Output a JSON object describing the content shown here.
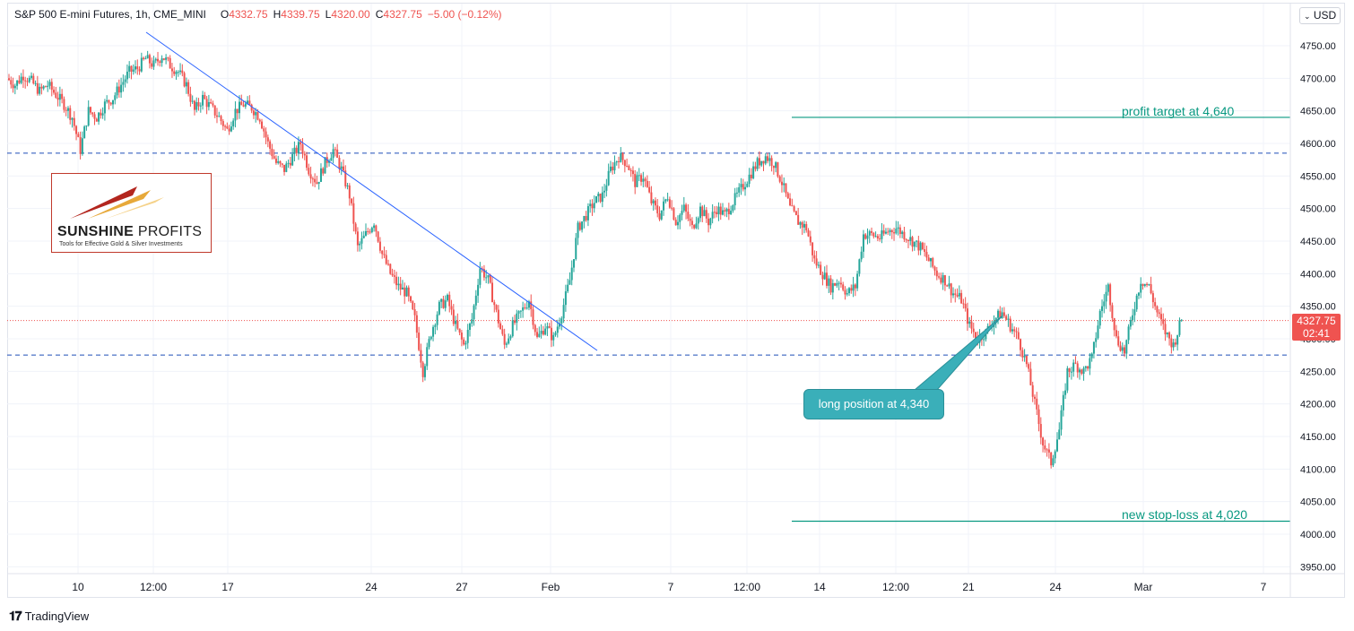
{
  "legend": {
    "symbol": "S&P 500 E-mini Futures, 1h, CME_MINI",
    "open_label": "O",
    "open": "4332.75",
    "high_label": "H",
    "high": "4339.75",
    "low_label": "L",
    "low": "4320.00",
    "close_label": "C",
    "close": "4327.75",
    "change": "−5.00 (−0.12%)"
  },
  "currency": "USD",
  "currency_menu_icon": "chevron-down-icon",
  "last_price": {
    "value": "4327.75",
    "countdown": "02:41"
  },
  "logo": {
    "brand_bold": "SUNSHINE",
    "brand_rest": "PROFITS",
    "tagline": "Tools for Effective Gold & Silver Investments"
  },
  "annotations": {
    "profit_target": "profit target at 4,640",
    "stop_loss": "new stop-loss at 4,020",
    "long_position": "long position at 4,340"
  },
  "footer": {
    "icon": "tradingview-logo-icon",
    "text": "TradingView"
  },
  "colors": {
    "up": "#26a69a",
    "down": "#ef5350",
    "trendline": "#2962ff",
    "level": "#1e4db7",
    "target": "#089981",
    "callout": "#3aafb9"
  },
  "chart_data": {
    "type": "candlestick",
    "y_ticks": [
      3950,
      4000,
      4050,
      4100,
      4150,
      4200,
      4250,
      4300,
      4350,
      4400,
      4450,
      4500,
      4550,
      4600,
      4650,
      4700,
      4750
    ],
    "y_tick_labels": [
      "3950.00",
      "4000.00",
      "4050.00",
      "4100.00",
      "4150.00",
      "4200.00",
      "4250.00",
      "4300.00",
      "4350.00",
      "4400.00",
      "4450.00",
      "4500.00",
      "4550.00",
      "4600.00",
      "4650.00",
      "4700.00",
      "4750.00"
    ],
    "x_tick_labels": [
      "10",
      "12:00",
      "17",
      "24",
      "27",
      "Feb",
      "7",
      "12:00",
      "14",
      "12:00",
      "21",
      "24",
      "Mar",
      "7"
    ],
    "ylim": [
      3920,
      4790
    ],
    "grid": true,
    "closes_path": [
      4700,
      4690,
      4705,
      4695,
      4680,
      4690,
      4675,
      4660,
      4640,
      4590,
      4650,
      4640,
      4660,
      4670,
      4690,
      4710,
      4715,
      4730,
      4720,
      4735,
      4720,
      4710,
      4690,
      4650,
      4670,
      4655,
      4640,
      4620,
      4650,
      4660,
      4655,
      4640,
      4600,
      4570,
      4560,
      4580,
      4600,
      4560,
      4540,
      4570,
      4590,
      4560,
      4520,
      4440,
      4460,
      4480,
      4430,
      4400,
      4380,
      4370,
      4330,
      4250,
      4310,
      4350,
      4360,
      4320,
      4290,
      4330,
      4410,
      4390,
      4340,
      4290,
      4320,
      4340,
      4360,
      4300,
      4320,
      4300,
      4340,
      4390,
      4470,
      4490,
      4510,
      4520,
      4560,
      4580,
      4570,
      4540,
      4550,
      4510,
      4490,
      4520,
      4480,
      4500,
      4470,
      4500,
      4480,
      4500,
      4490,
      4510,
      4530,
      4550,
      4570,
      4580,
      4570,
      4540,
      4500,
      4480,
      4470,
      4420,
      4400,
      4380,
      4390,
      4370,
      4380,
      4460,
      4460,
      4455,
      4465,
      4470,
      4460,
      4450,
      4440,
      4420,
      4400,
      4390,
      4370,
      4360,
      4320,
      4300,
      4310,
      4330,
      4340,
      4320,
      4300,
      4260,
      4200,
      4140,
      4110,
      4160,
      4250,
      4260,
      4250,
      4270,
      4340,
      4380,
      4300,
      4280,
      4340,
      4390,
      4380,
      4340,
      4310,
      4290,
      4330
    ],
    "horizontal_levels": [
      {
        "value": 4585,
        "style": "dashed"
      },
      {
        "value": 4275,
        "style": "dashed"
      },
      {
        "value": 4328,
        "style": "dotted",
        "label": "last price"
      }
    ],
    "target_lines": [
      {
        "value": 4640,
        "label": "profit target at 4,640"
      },
      {
        "value": 4020,
        "label": "new stop-loss at 4,020"
      }
    ],
    "trendline": {
      "from": {
        "x": "12:00 (Jan 10)",
        "y": 4775
      },
      "to": {
        "x": "Feb 2",
        "y": 4285
      }
    }
  }
}
